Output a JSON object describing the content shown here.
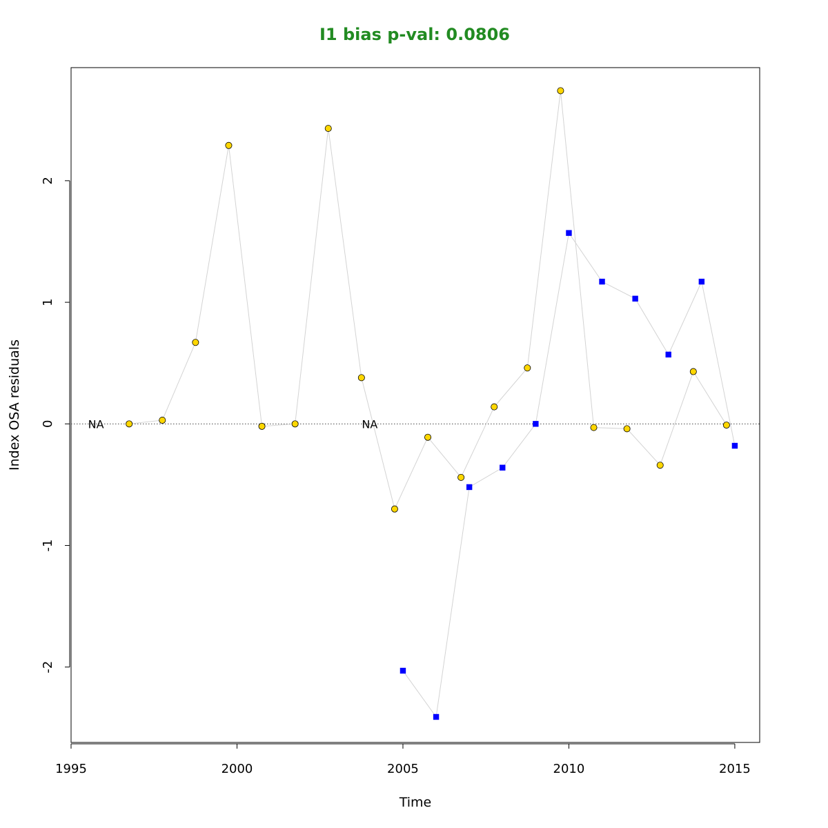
{
  "chart_data": {
    "type": "scatter",
    "title": "I1 bias p-val: 0.0806",
    "title_color": "#228B22",
    "xlabel": "Time",
    "ylabel": "Index OSA residuals",
    "xlim": [
      1995,
      2015.75
    ],
    "ylim": [
      -2.62,
      2.93
    ],
    "x_ticks": [
      1995,
      2000,
      2005,
      2010,
      2015
    ],
    "y_ticks": [
      -2,
      -1,
      0,
      1,
      2
    ],
    "reference_line": {
      "y": 0,
      "style": "dotted"
    },
    "line_color": "#d3d3d3",
    "na_markers": [
      {
        "x": 1995.75,
        "label": "NA"
      },
      {
        "x": 2004.0,
        "label": "NA"
      }
    ],
    "series": [
      {
        "marker": "circle",
        "fill": "#FFD700",
        "points": [
          [
            1996.75,
            0.0
          ],
          [
            1997.75,
            0.03
          ],
          [
            1998.75,
            0.67
          ],
          [
            1999.75,
            2.29
          ],
          [
            2000.75,
            -0.02
          ],
          [
            2001.75,
            0.0
          ],
          [
            2002.75,
            2.43
          ],
          [
            2003.75,
            0.38
          ],
          [
            2004.75,
            -0.7
          ],
          [
            2005.75,
            -0.11
          ],
          [
            2006.75,
            -0.44
          ],
          [
            2007.75,
            0.14
          ],
          [
            2008.75,
            0.46
          ],
          [
            2009.75,
            2.74
          ],
          [
            2010.75,
            -0.03
          ],
          [
            2011.75,
            -0.04
          ],
          [
            2012.75,
            -0.34
          ],
          [
            2013.75,
            0.43
          ],
          [
            2014.75,
            -0.01
          ]
        ]
      },
      {
        "marker": "square",
        "fill": "#0000FF",
        "points": [
          [
            2005,
            -2.03
          ],
          [
            2006,
            -2.41
          ],
          [
            2007,
            -0.52
          ],
          [
            2008,
            -0.36
          ],
          [
            2009,
            0.0
          ],
          [
            2010,
            1.57
          ],
          [
            2011,
            1.17
          ],
          [
            2012,
            1.03
          ],
          [
            2013,
            0.57
          ],
          [
            2014,
            1.17
          ],
          [
            2015,
            -0.18
          ]
        ]
      }
    ]
  }
}
